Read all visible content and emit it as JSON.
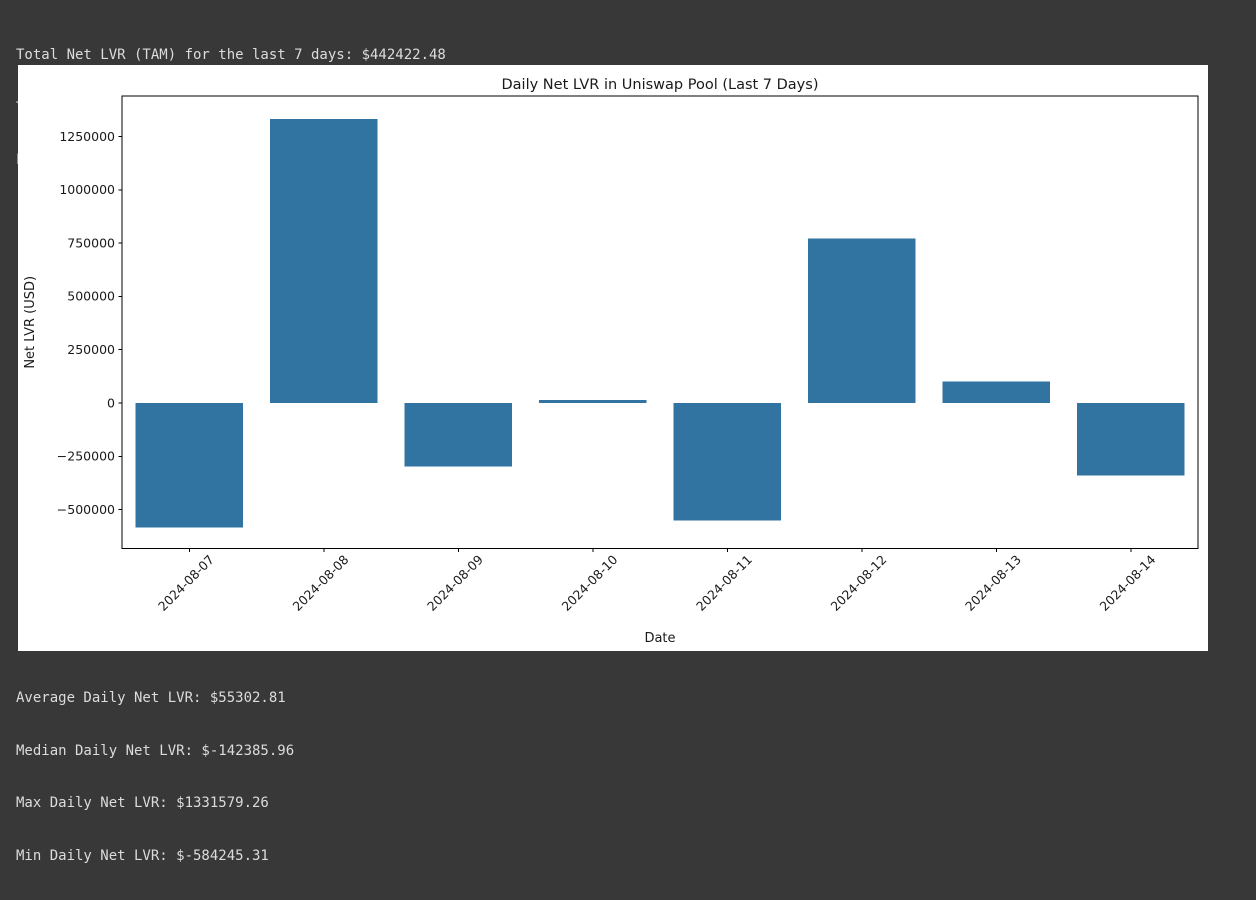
{
  "terminal": {
    "top_lines": [
      "Total Net LVR (TAM) for the last 7 days: $442422.48",
      "Total Volume: $623816243.26",
      "LVR as percentage of Volume: 0.07%"
    ],
    "bottom_lines": [
      "Average Daily Net LVR: $55302.81",
      "Median Daily Net LVR: $-142385.96",
      "Max Daily Net LVR: $1331579.26",
      "Min Daily Net LVR: $-584245.31"
    ]
  },
  "colors": {
    "background": "#383838",
    "terminal_text": "#dcdcdc",
    "figure_background": "#ffffff",
    "bar": "#3274a1",
    "axis": "#000000",
    "tick_label": "#1a1a1a"
  },
  "chart_data": {
    "type": "bar",
    "title": "Daily Net LVR in Uniswap Pool (Last 7 Days)",
    "xlabel": "Date",
    "ylabel": "Net LVR (USD)",
    "categories": [
      "2024-08-07",
      "2024-08-08",
      "2024-08-09",
      "2024-08-10",
      "2024-08-11",
      "2024-08-12",
      "2024-08-13",
      "2024-08-14"
    ],
    "values": [
      -584245.31,
      1331579.26,
      -298771.92,
      14000.0,
      -551000.0,
      771000.0,
      99860.45,
      -340000.0
    ],
    "yticks": [
      -500000,
      -250000,
      0,
      250000,
      500000,
      750000,
      1000000,
      1250000
    ],
    "ylim": [
      -682400,
      1440000
    ],
    "grid": false,
    "legend": "none",
    "bar_color": "#3274a1",
    "x_tick_rotation_deg": 45
  }
}
